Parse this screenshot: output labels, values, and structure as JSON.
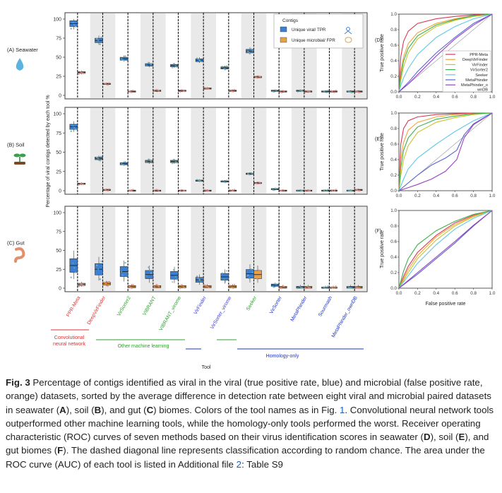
{
  "figure": {
    "row_labels": [
      "(A) Seawater",
      "(B) Soil",
      "(C) Gut"
    ],
    "panel_letters": [
      "(D)",
      "(E)",
      "(F)"
    ],
    "y_axis_label": "Percentage of viral contigs detected by each tool %",
    "x_axis_label": "Tool",
    "legend": {
      "title": "Contigs",
      "entries": [
        "Unique viral/ TPR",
        "Unique microbial/ FPR"
      ],
      "colors": [
        "#3d7fd0",
        "#e8a23b"
      ]
    },
    "y_ticks": [
      "0",
      "25",
      "50",
      "75",
      "100"
    ],
    "tools": [
      "PPR-Meta",
      "DeepVirFinder",
      "VirSorter2",
      "VIBRANT",
      "VIBRANT_virome",
      "VirFinder",
      "VirSorter_virome",
      "Seeker",
      "VirSorter",
      "MetaPhinder",
      "Sourmash",
      "MetaPhinder_ownDB"
    ],
    "tool_colors": [
      "#e03030",
      "#e03030",
      "#2ca02c",
      "#2ca02c",
      "#2ca02c",
      "#3a3adf",
      "#3a3adf",
      "#2ca02c",
      "#1a33c8",
      "#1a33c8",
      "#1a33c8",
      "#1a33c8"
    ],
    "group_labels": {
      "cnn": "Convolutional neural network",
      "cnn_line1": "Convolutional",
      "cnn_line2": "neural network",
      "other_ml": "Other machine learning",
      "homology": "Homology-only"
    },
    "roc": {
      "x_label": "False positive rate",
      "y_label": "True positive rate",
      "ticks": [
        "0.0",
        "0.2",
        "0.4",
        "0.6",
        "0.8",
        "1.0"
      ],
      "legend": [
        "PPR-Meta",
        "DeepVirFinder",
        "VirFinder",
        "VirSorter2",
        "Seeker",
        "MetaPhinder",
        "MetaPhinder_ownDB"
      ],
      "legend_line1_last": "MetaPhinder_o",
      "legend_line2_last": "wnDB",
      "colors": [
        "#d63a56",
        "#f2a23a",
        "#c6c430",
        "#3bb04a",
        "#5fc8e8",
        "#5a64d0",
        "#9b3fbf"
      ]
    }
  },
  "chart_data": [
    {
      "type": "box",
      "title": "(A) Seawater",
      "ylabel": "Percentage of viral contigs detected by each tool %",
      "xlabel": "Tool",
      "ylim": [
        0,
        100
      ],
      "categories": [
        "PPR-Meta",
        "DeepVirFinder",
        "VirSorter2",
        "VIBRANT",
        "VIBRANT_virome",
        "VirFinder",
        "VirSorter_virome",
        "Seeker",
        "VirSorter",
        "MetaPhinder",
        "Sourmash",
        "MetaPhinder_ownDB"
      ],
      "series": [
        {
          "name": "Unique viral/ TPR",
          "values": [
            94,
            72,
            48,
            40,
            39,
            46,
            36,
            58,
            6,
            6,
            5,
            5
          ]
        },
        {
          "name": "Unique microbial/ FPR",
          "values": [
            30,
            15,
            5,
            6,
            6,
            9,
            6,
            24,
            5,
            5,
            5,
            5
          ]
        }
      ]
    },
    {
      "type": "box",
      "title": "(B) Soil",
      "ylabel": "Percentage of viral contigs detected by each tool %",
      "xlabel": "Tool",
      "ylim": [
        0,
        100
      ],
      "categories": [
        "PPR-Meta",
        "DeepVirFinder",
        "VirSorter2",
        "VIBRANT",
        "VIBRANT_virome",
        "VirFinder",
        "VirSorter_virome",
        "Seeker",
        "VirSorter",
        "MetaPhinder",
        "Sourmash",
        "MetaPhinder_ownDB"
      ],
      "series": [
        {
          "name": "Unique viral/ TPR",
          "values": [
            83,
            42,
            35,
            38,
            38,
            13,
            12,
            22,
            2,
            0,
            0,
            0
          ]
        },
        {
          "name": "Unique microbial/ FPR",
          "values": [
            9,
            1,
            0,
            0,
            0,
            0,
            0,
            10,
            0,
            0,
            0,
            1
          ]
        }
      ]
    },
    {
      "type": "box",
      "title": "(C) Gut",
      "ylabel": "Percentage of viral contigs detected by each tool %",
      "xlabel": "Tool",
      "ylim": [
        0,
        100
      ],
      "categories": [
        "PPR-Meta",
        "DeepVirFinder",
        "VirSorter2",
        "VIBRANT",
        "VIBRANT_virome",
        "VirFinder",
        "VirSorter_virome",
        "Seeker",
        "VirSorter",
        "MetaPhinder",
        "Sourmash",
        "MetaPhinder_ownDB"
      ],
      "series": [
        {
          "name": "Unique viral/ TPR",
          "values": [
            30,
            25,
            22,
            18,
            17,
            11,
            15,
            19,
            4,
            1,
            0,
            1
          ]
        },
        {
          "name": "Unique microbial/ FPR",
          "values": [
            5,
            6,
            2,
            2,
            2,
            2,
            2,
            18,
            1,
            1,
            0,
            1
          ]
        }
      ]
    },
    {
      "type": "line",
      "title": "(D)",
      "xlabel": "False positive rate",
      "ylabel": "True positive rate",
      "xlim": [
        0,
        1
      ],
      "ylim": [
        0,
        1
      ],
      "series": [
        {
          "name": "PPR-Meta",
          "x": [
            0,
            0.02,
            0.05,
            0.1,
            0.2,
            0.4,
            0.6,
            0.8,
            1
          ],
          "y": [
            0,
            0.45,
            0.65,
            0.78,
            0.88,
            0.94,
            0.97,
            0.99,
            1
          ]
        },
        {
          "name": "DeepVirFinder",
          "x": [
            0,
            0.02,
            0.05,
            0.1,
            0.2,
            0.4,
            0.6,
            0.8,
            1
          ],
          "y": [
            0,
            0.25,
            0.45,
            0.62,
            0.76,
            0.88,
            0.94,
            0.98,
            1
          ]
        },
        {
          "name": "VirFinder",
          "x": [
            0,
            0.02,
            0.05,
            0.1,
            0.2,
            0.4,
            0.6,
            0.8,
            1
          ],
          "y": [
            0,
            0.15,
            0.32,
            0.5,
            0.68,
            0.84,
            0.92,
            0.97,
            1
          ]
        },
        {
          "name": "VirSorter2",
          "x": [
            0,
            0.02,
            0.05,
            0.1,
            0.2,
            0.4,
            0.6,
            0.8,
            1
          ],
          "y": [
            0,
            0.2,
            0.4,
            0.56,
            0.72,
            0.86,
            0.93,
            0.98,
            1
          ]
        },
        {
          "name": "Seeker",
          "x": [
            0,
            0.02,
            0.05,
            0.1,
            0.2,
            0.4,
            0.6,
            0.8,
            1
          ],
          "y": [
            0,
            0.08,
            0.18,
            0.3,
            0.48,
            0.7,
            0.84,
            0.94,
            1
          ]
        },
        {
          "name": "MetaPhinder",
          "x": [
            0,
            0.1,
            0.2,
            0.4,
            0.6,
            0.8,
            1
          ],
          "y": [
            0,
            0.12,
            0.26,
            0.5,
            0.7,
            0.88,
            1
          ]
        },
        {
          "name": "MetaPhinder_ownDB",
          "x": [
            0,
            0.1,
            0.2,
            0.4,
            0.6,
            0.8,
            1
          ],
          "y": [
            0,
            0.1,
            0.22,
            0.46,
            0.68,
            0.86,
            1
          ]
        }
      ]
    },
    {
      "type": "line",
      "title": "(E)",
      "xlabel": "False positive rate",
      "ylabel": "True positive rate",
      "xlim": [
        0,
        1
      ],
      "ylim": [
        0,
        1
      ],
      "series": [
        {
          "name": "PPR-Meta",
          "x": [
            0,
            0.02,
            0.05,
            0.1,
            0.2,
            0.4,
            0.6,
            0.8,
            1
          ],
          "y": [
            0,
            0.6,
            0.8,
            0.9,
            0.95,
            0.98,
            0.99,
            1,
            1
          ]
        },
        {
          "name": "DeepVirFinder",
          "x": [
            0,
            0.02,
            0.05,
            0.1,
            0.2,
            0.4,
            0.6,
            0.8,
            1
          ],
          "y": [
            0,
            0.4,
            0.62,
            0.78,
            0.88,
            0.95,
            0.98,
            0.99,
            1
          ]
        },
        {
          "name": "VirFinder",
          "x": [
            0,
            0.02,
            0.05,
            0.1,
            0.2,
            0.4,
            0.6,
            0.8,
            1
          ],
          "y": [
            0,
            0.2,
            0.4,
            0.58,
            0.75,
            0.88,
            0.94,
            0.98,
            1
          ]
        },
        {
          "name": "VirSorter2",
          "x": [
            0,
            0.02,
            0.05,
            0.1,
            0.2,
            0.4,
            0.6,
            0.8,
            1
          ],
          "y": [
            0,
            0.3,
            0.52,
            0.68,
            0.82,
            0.92,
            0.96,
            0.99,
            1
          ]
        },
        {
          "name": "Seeker",
          "x": [
            0,
            0.05,
            0.1,
            0.2,
            0.4,
            0.6,
            0.8,
            1
          ],
          "y": [
            0,
            0.15,
            0.28,
            0.42,
            0.6,
            0.76,
            0.9,
            1
          ]
        },
        {
          "name": "MetaPhinder",
          "x": [
            0,
            0.1,
            0.2,
            0.35,
            0.5,
            0.62,
            0.7,
            0.8,
            1
          ],
          "y": [
            0,
            0.1,
            0.2,
            0.33,
            0.42,
            0.52,
            0.72,
            0.86,
            1
          ]
        },
        {
          "name": "MetaPhinder_ownDB",
          "x": [
            0,
            0.1,
            0.2,
            0.35,
            0.5,
            0.62,
            0.7,
            0.8,
            1
          ],
          "y": [
            0,
            0.04,
            0.08,
            0.15,
            0.25,
            0.4,
            0.68,
            0.85,
            1
          ]
        }
      ]
    },
    {
      "type": "line",
      "title": "(F)",
      "xlabel": "False positive rate",
      "ylabel": "True positive rate",
      "xlim": [
        0,
        1
      ],
      "ylim": [
        0,
        1
      ],
      "series": [
        {
          "name": "PPR-Meta",
          "x": [
            0,
            0.05,
            0.1,
            0.2,
            0.4,
            0.6,
            0.8,
            1
          ],
          "y": [
            0,
            0.15,
            0.28,
            0.46,
            0.68,
            0.84,
            0.94,
            1
          ]
        },
        {
          "name": "DeepVirFinder",
          "x": [
            0,
            0.05,
            0.1,
            0.2,
            0.4,
            0.6,
            0.8,
            1
          ],
          "y": [
            0,
            0.12,
            0.24,
            0.42,
            0.66,
            0.82,
            0.93,
            1
          ]
        },
        {
          "name": "VirFinder",
          "x": [
            0,
            0.05,
            0.1,
            0.2,
            0.4,
            0.6,
            0.8,
            1
          ],
          "y": [
            0,
            0.1,
            0.2,
            0.38,
            0.62,
            0.8,
            0.92,
            1
          ]
        },
        {
          "name": "VirSorter2",
          "x": [
            0,
            0.05,
            0.1,
            0.2,
            0.4,
            0.6,
            0.8,
            1
          ],
          "y": [
            0,
            0.22,
            0.38,
            0.56,
            0.74,
            0.86,
            0.95,
            1
          ]
        },
        {
          "name": "Seeker",
          "x": [
            0,
            0.05,
            0.1,
            0.2,
            0.4,
            0.6,
            0.8,
            1
          ],
          "y": [
            0,
            0.08,
            0.16,
            0.32,
            0.56,
            0.76,
            0.9,
            1
          ]
        },
        {
          "name": "MetaPhinder",
          "x": [
            0,
            0.2,
            0.4,
            0.6,
            0.8,
            1
          ],
          "y": [
            0,
            0.18,
            0.38,
            0.58,
            0.8,
            1
          ]
        },
        {
          "name": "MetaPhinder_ownDB",
          "x": [
            0,
            0.2,
            0.4,
            0.6,
            0.8,
            1
          ],
          "y": [
            0,
            0.2,
            0.4,
            0.6,
            0.81,
            1
          ]
        }
      ]
    }
  ],
  "caption": {
    "label": "Fig. 3",
    "text_1": " Percentage of contigs identified as viral in the viral (true positive rate, blue) and microbial (false positive rate, orange) datasets, sorted by the average difference in detection rate between eight viral and microbial paired datasets in seawater (",
    "bold_A": "A",
    "text_2": "), soil (",
    "bold_B": "B",
    "text_3": "), and gut (",
    "bold_C": "C",
    "text_4": ") biomes. Colors of the tool names as in Fig. ",
    "fig_ref": "1",
    "text_5": ". Convolutional neural network tools outperformed other machine learning tools, while the homology-only tools performed the worst. Receiver operating characteristic (ROC) curves of seven methods based on their virus identification scores in seawater (",
    "bold_D": "D",
    "text_6": "), soil (",
    "bold_E": "E",
    "text_7": "), and gut biomes (",
    "bold_F": "F",
    "text_8": "). The dashed diagonal line represents classification according to random chance. The area under the ROC curve (AUC) of each tool is listed in Additional file ",
    "file_ref": "2",
    "text_9": ": Table S9"
  }
}
